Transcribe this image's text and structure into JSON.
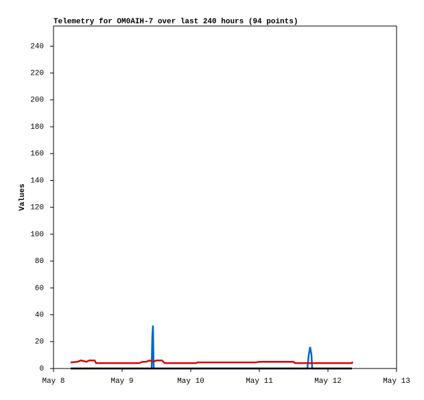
{
  "chart_data": {
    "type": "line",
    "title": "Telemetry for OM0AIH-7 over last 240 hours (94 points)",
    "y_label": "Values",
    "xlim": [
      0,
      5
    ],
    "xticks": [
      {
        "value": 0,
        "label": "May 8"
      },
      {
        "value": 1,
        "label": "May 9"
      },
      {
        "value": 2,
        "label": "May 10"
      },
      {
        "value": 3,
        "label": "May 11"
      },
      {
        "value": 4,
        "label": "May 12"
      },
      {
        "value": 5,
        "label": "May 13"
      }
    ],
    "ylim": [
      0,
      255
    ],
    "yticks": [
      0,
      20,
      40,
      60,
      80,
      100,
      120,
      140,
      160,
      180,
      200,
      220,
      240
    ],
    "series": [
      {
        "color": "#0066cc",
        "x": [
          0.25,
          1.43,
          1.44,
          1.45,
          1.46,
          3.7,
          3.72,
          3.74,
          3.76,
          3.77,
          4.35
        ],
        "values": [
          0,
          0,
          24,
          32,
          0,
          0,
          10,
          16,
          10,
          0,
          0
        ]
      },
      {
        "color": "#dd0000",
        "x": [
          0.25,
          0.35,
          0.4,
          0.48,
          0.52,
          0.6,
          0.62,
          1.0,
          1.25,
          1.3,
          1.35,
          1.4,
          1.45,
          1.5,
          1.58,
          1.62,
          2.0,
          2.08,
          2.1,
          2.95,
          3.0,
          3.5,
          3.52,
          4.35,
          4.36
        ],
        "values": [
          4.5,
          5,
          6,
          5,
          6,
          6,
          4,
          4,
          4,
          5,
          5,
          6,
          5,
          6,
          6,
          4,
          4,
          4,
          4.5,
          4.5,
          5,
          5,
          4,
          4,
          5
        ]
      },
      {
        "color": "#000000",
        "x": [
          0.25,
          4.35
        ],
        "values": [
          0,
          0
        ]
      }
    ]
  }
}
